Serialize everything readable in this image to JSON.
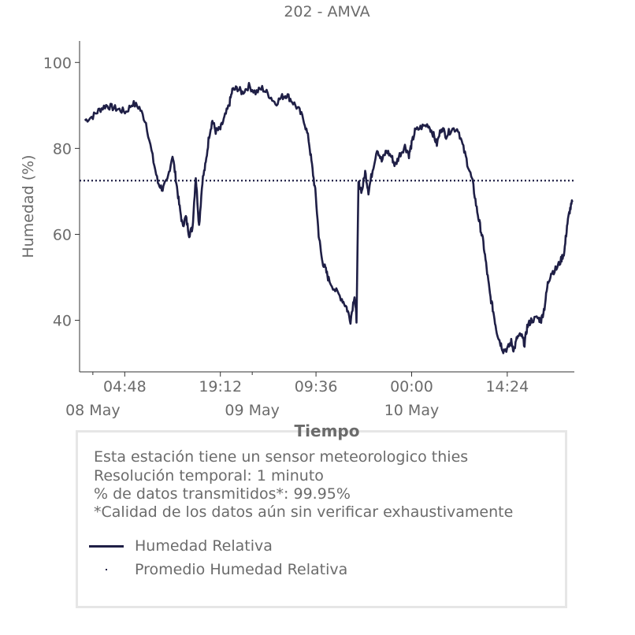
{
  "chart_data": {
    "type": "line",
    "title": "202 - AMVA",
    "xlabel": "Tiempo",
    "ylabel": "Humedad (%)",
    "ylim": [
      28,
      105
    ],
    "xlim_hours_note": "",
    "y_ticks": [
      40,
      60,
      80,
      100
    ],
    "x_ticks": [
      {
        "h": 4.8,
        "label": "04:48"
      },
      {
        "h": 19.2,
        "label": "19:12"
      },
      {
        "h": 33.6,
        "label": "09:36"
      },
      {
        "h": 48.0,
        "label": "00:00"
      },
      {
        "h": 62.4,
        "label": "14:24"
      }
    ],
    "x_day_labels": [
      {
        "h": 0,
        "label": "08 May"
      },
      {
        "h": 24,
        "label": "09 May"
      },
      {
        "h": 48,
        "label": "10 May"
      }
    ],
    "grid": false,
    "series": [
      {
        "name": "Humedad Relativa",
        "style": "solid",
        "color": "#1f1f46",
        "points": [
          [
            -1.2,
            86.5
          ],
          [
            0.0,
            87.5
          ],
          [
            1.0,
            89.0
          ],
          [
            2.0,
            90.0
          ],
          [
            3.0,
            89.5
          ],
          [
            4.0,
            89.0
          ],
          [
            5.0,
            88.5
          ],
          [
            6.0,
            90.5
          ],
          [
            7.0,
            89.5
          ],
          [
            8.0,
            86.0
          ],
          [
            9.0,
            78.0
          ],
          [
            9.8,
            72.0
          ],
          [
            10.5,
            70.5
          ],
          [
            11.2,
            72.5
          ],
          [
            12.0,
            78.5
          ],
          [
            12.5,
            73.0
          ],
          [
            13.0,
            67.0
          ],
          [
            13.5,
            62.0
          ],
          [
            14.0,
            64.0
          ],
          [
            14.5,
            60.0
          ],
          [
            15.0,
            61.5
          ],
          [
            15.5,
            73.5
          ],
          [
            16.0,
            62.0
          ],
          [
            16.5,
            72.5
          ],
          [
            17.0,
            76.5
          ],
          [
            17.5,
            83.0
          ],
          [
            18.0,
            86.5
          ],
          [
            18.5,
            84.0
          ],
          [
            19.2,
            84.5
          ],
          [
            19.8,
            87.0
          ],
          [
            20.5,
            90.0
          ],
          [
            21.0,
            93.5
          ],
          [
            21.8,
            94.0
          ],
          [
            22.5,
            93.0
          ],
          [
            23.5,
            94.5
          ],
          [
            24.5,
            93.0
          ],
          [
            25.5,
            94.0
          ],
          [
            26.5,
            92.5
          ],
          [
            27.5,
            90.5
          ],
          [
            28.5,
            92.0
          ],
          [
            29.2,
            92.5
          ],
          [
            30.0,
            91.0
          ],
          [
            31.0,
            89.0
          ],
          [
            31.8,
            86.5
          ],
          [
            32.5,
            82.0
          ],
          [
            33.0,
            76.0
          ],
          [
            33.5,
            70.0
          ],
          [
            34.0,
            60.0
          ],
          [
            34.5,
            54.0
          ],
          [
            35.0,
            52.0
          ],
          [
            35.5,
            49.5
          ],
          [
            36.5,
            47.0
          ],
          [
            37.5,
            45.0
          ],
          [
            38.2,
            43.0
          ],
          [
            38.8,
            40.0
          ],
          [
            39.4,
            46.0
          ],
          [
            39.7,
            40.0
          ],
          [
            40.0,
            72.0
          ],
          [
            40.5,
            70.0
          ],
          [
            41.0,
            74.5
          ],
          [
            41.5,
            70.0
          ],
          [
            42.0,
            74.0
          ],
          [
            42.8,
            80.0
          ],
          [
            43.5,
            77.0
          ],
          [
            44.2,
            79.5
          ],
          [
            45.0,
            78.0
          ],
          [
            45.5,
            76.0
          ],
          [
            46.2,
            78.5
          ],
          [
            47.0,
            80.5
          ],
          [
            47.6,
            78.5
          ],
          [
            48.0,
            81.0
          ],
          [
            48.5,
            84.0
          ],
          [
            49.5,
            85.0
          ],
          [
            50.5,
            85.5
          ],
          [
            51.2,
            83.5
          ],
          [
            51.8,
            81.0
          ],
          [
            52.5,
            85.0
          ],
          [
            53.2,
            83.0
          ],
          [
            54.0,
            84.5
          ],
          [
            55.0,
            84.5
          ],
          [
            55.8,
            80.0
          ],
          [
            56.5,
            76.0
          ],
          [
            57.2,
            72.0
          ],
          [
            57.8,
            66.0
          ],
          [
            58.3,
            62.0
          ],
          [
            58.8,
            58.0
          ],
          [
            59.3,
            52.0
          ],
          [
            59.8,
            46.0
          ],
          [
            60.3,
            42.0
          ],
          [
            60.8,
            37.5
          ],
          [
            61.3,
            35.0
          ],
          [
            61.8,
            33.0
          ],
          [
            62.5,
            33.5
          ],
          [
            63.0,
            35.0
          ],
          [
            63.4,
            33.0
          ],
          [
            63.9,
            36.0
          ],
          [
            64.5,
            36.5
          ],
          [
            65.0,
            34.5
          ],
          [
            65.4,
            38.5
          ],
          [
            66.0,
            40.0
          ],
          [
            67.0,
            40.5
          ],
          [
            67.5,
            40.0
          ],
          [
            68.0,
            43.0
          ],
          [
            68.5,
            48.5
          ],
          [
            69.0,
            51.0
          ],
          [
            69.8,
            52.0
          ],
          [
            70.5,
            54.0
          ],
          [
            71.0,
            56.0
          ],
          [
            71.4,
            62.0
          ],
          [
            71.8,
            65.5
          ],
          [
            72.2,
            67.5
          ]
        ]
      },
      {
        "name": "Promedio Humedad Relativa",
        "style": "dotted",
        "color": "#1f1f46",
        "value": 72.5
      }
    ]
  },
  "info": {
    "lines": [
      "Esta estación tiene un sensor meteorologico thies",
      "Resolución temporal: 1 minuto",
      "% de datos transmitidos*: 99.95%",
      "*Calidad de los datos aún sin verificar exhaustivamente"
    ],
    "legend": [
      {
        "label": "Humedad Relativa",
        "marker": "line"
      },
      {
        "label": "Promedio Humedad Relativa",
        "marker": "dot"
      }
    ]
  }
}
